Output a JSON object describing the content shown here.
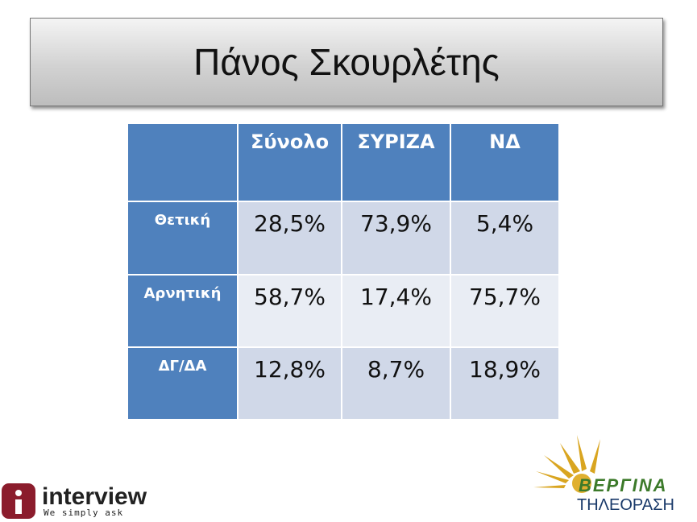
{
  "header": {
    "title": "Πάνος Σκουρλέτης"
  },
  "table": {
    "columns": [
      "Σύνολο",
      "ΣΥΡΙΖΑ",
      "ΝΔ"
    ],
    "rows": [
      [
        "Θετική",
        "28,5%",
        "73,9%",
        "5,4%"
      ],
      [
        "Αρνητική",
        "58,7%",
        "17,4%",
        "75,7%"
      ],
      [
        "ΔΓ/ΔΑ",
        "12,8%",
        "8,7%",
        "18,9%"
      ]
    ]
  },
  "logos": {
    "interview": {
      "name": "interview",
      "tagline": "We simply ask"
    },
    "vergina": {
      "name": "ΒΕΡΓΙΝΑ",
      "subtitle": "ΤΗΛΕΟΡΑΣΗ"
    }
  }
}
